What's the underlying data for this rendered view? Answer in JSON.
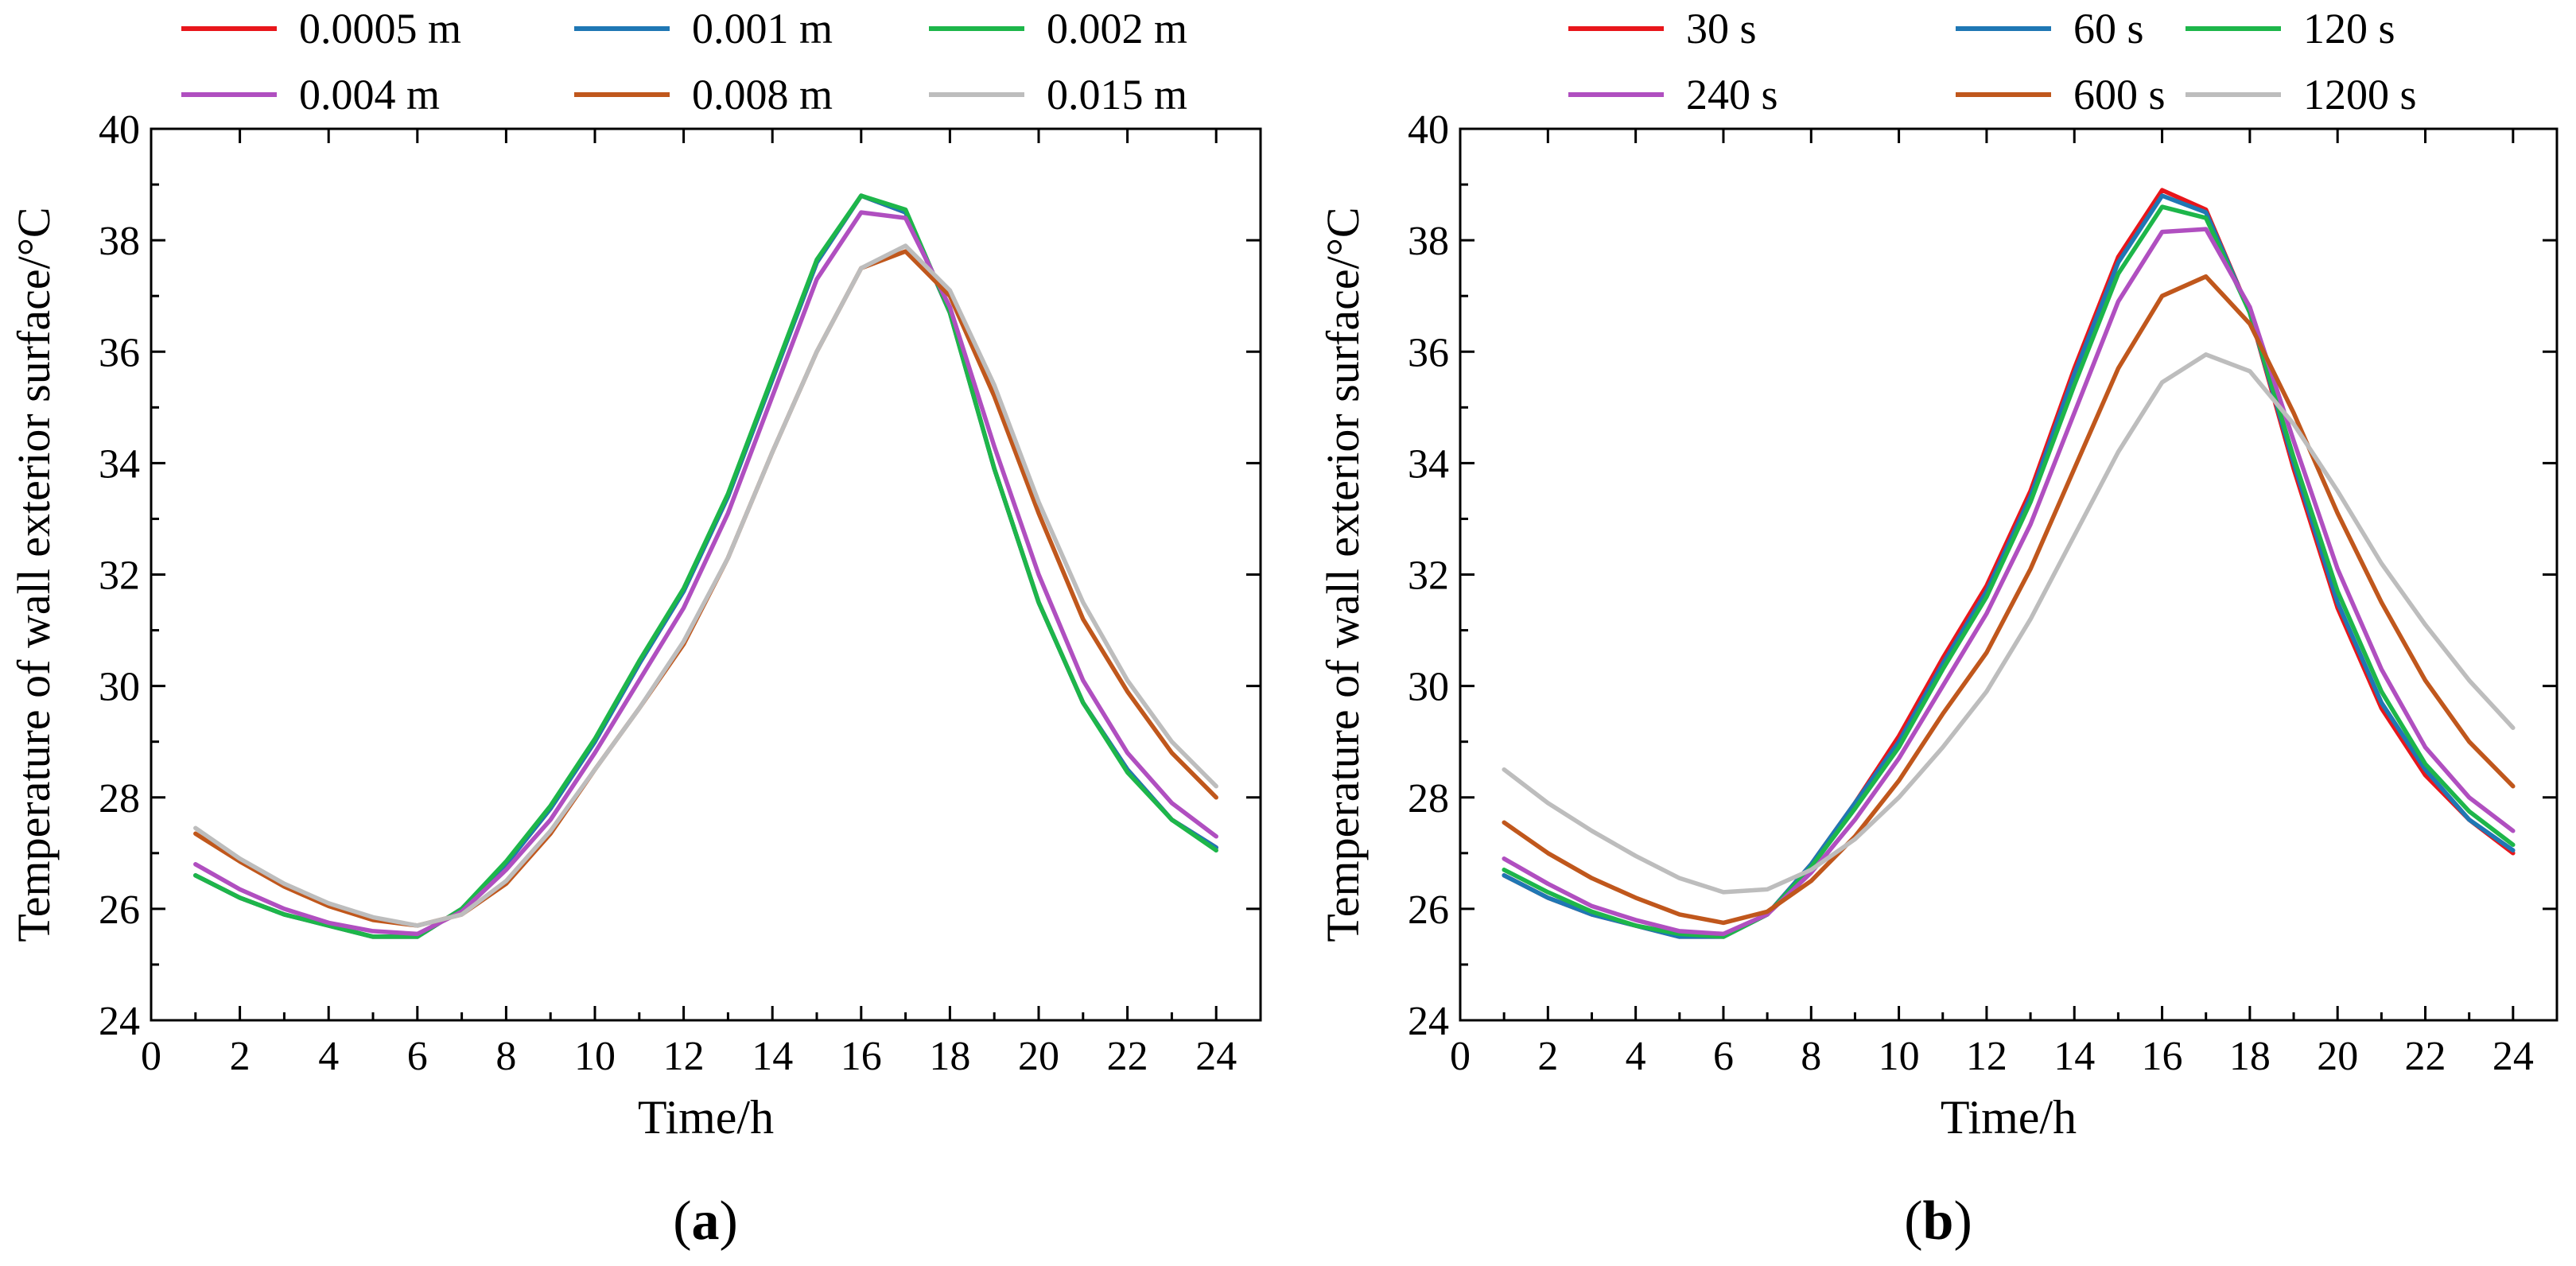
{
  "colors": {
    "red": "#e8161b",
    "blue": "#1f77b4",
    "green": "#1db64a",
    "purple": "#b04fc0",
    "orange": "#c0571c",
    "gray": "#bdbdbd",
    "axis": "#000000"
  },
  "chart_data": [
    {
      "type": "line",
      "panel_label": "(a)",
      "panel_letter": "a",
      "xlabel": "Time/h",
      "ylabel": "Temperature of wall exterior surface/°C",
      "xlim": [
        0,
        25
      ],
      "ylim": [
        24,
        40
      ],
      "xticks": [
        "0",
        "2",
        "4",
        "6",
        "8",
        "10",
        "12",
        "14",
        "16",
        "18",
        "20",
        "22",
        "24"
      ],
      "yticks": [
        "24",
        "26",
        "28",
        "30",
        "32",
        "34",
        "36",
        "38",
        "40"
      ],
      "legend_position": "top",
      "x": [
        1,
        2,
        3,
        4,
        5,
        6,
        7,
        8,
        9,
        10,
        11,
        12,
        13,
        14,
        15,
        16,
        17,
        18,
        19,
        20,
        21,
        22,
        23,
        24
      ],
      "series": [
        {
          "name": "0.0005 m",
          "color": "red",
          "values": [
            26.6,
            26.2,
            25.9,
            25.7,
            25.5,
            25.5,
            26.0,
            26.8,
            27.8,
            29.0,
            30.4,
            31.7,
            33.4,
            35.5,
            37.6,
            38.8,
            38.5,
            36.7,
            33.9,
            31.5,
            29.7,
            28.5,
            27.6,
            27.1
          ]
        },
        {
          "name": "0.001 m",
          "color": "blue",
          "values": [
            26.6,
            26.2,
            25.9,
            25.7,
            25.5,
            25.5,
            26.0,
            26.8,
            27.8,
            29.0,
            30.4,
            31.7,
            33.4,
            35.5,
            37.6,
            38.8,
            38.5,
            36.7,
            33.9,
            31.5,
            29.7,
            28.5,
            27.6,
            27.1
          ]
        },
        {
          "name": "0.002 m",
          "color": "green",
          "values": [
            26.6,
            26.2,
            25.9,
            25.7,
            25.5,
            25.5,
            26.0,
            26.85,
            27.85,
            29.05,
            30.45,
            31.75,
            33.45,
            35.55,
            37.65,
            38.8,
            38.55,
            36.7,
            33.9,
            31.5,
            29.7,
            28.45,
            27.6,
            27.05
          ]
        },
        {
          "name": "0.004 m",
          "color": "purple",
          "values": [
            26.8,
            26.35,
            26.0,
            25.75,
            25.6,
            25.55,
            25.95,
            26.7,
            27.6,
            28.8,
            30.1,
            31.4,
            33.1,
            35.2,
            37.3,
            38.5,
            38.4,
            36.8,
            34.3,
            32.0,
            30.1,
            28.8,
            27.9,
            27.3
          ]
        },
        {
          "name": "0.008 m",
          "color": "orange",
          "values": [
            27.35,
            26.85,
            26.4,
            26.05,
            25.8,
            25.7,
            25.9,
            26.45,
            27.35,
            28.5,
            29.6,
            30.75,
            32.3,
            34.2,
            36.0,
            37.5,
            37.8,
            37.0,
            35.2,
            33.1,
            31.2,
            29.9,
            28.8,
            28.0
          ]
        },
        {
          "name": "0.015 m",
          "color": "gray",
          "values": [
            27.45,
            26.9,
            26.45,
            26.1,
            25.85,
            25.7,
            25.9,
            26.5,
            27.4,
            28.5,
            29.6,
            30.8,
            32.3,
            34.2,
            36.0,
            37.5,
            37.9,
            37.1,
            35.4,
            33.3,
            31.5,
            30.1,
            29.0,
            28.2
          ]
        }
      ]
    },
    {
      "type": "line",
      "panel_label": "(b)",
      "panel_letter": "b",
      "xlabel": "Time/h",
      "ylabel": "Temperature of wall exterior surface/°C",
      "xlim": [
        0,
        25
      ],
      "ylim": [
        24,
        40
      ],
      "xticks": [
        "0",
        "2",
        "4",
        "6",
        "8",
        "10",
        "12",
        "14",
        "16",
        "18",
        "20",
        "22",
        "24"
      ],
      "yticks": [
        "24",
        "26",
        "28",
        "30",
        "32",
        "34",
        "36",
        "38",
        "40"
      ],
      "legend_position": "top",
      "x": [
        1,
        2,
        3,
        4,
        5,
        6,
        7,
        8,
        9,
        10,
        11,
        12,
        13,
        14,
        15,
        16,
        17,
        18,
        19,
        20,
        21,
        22,
        23,
        24
      ],
      "series": [
        {
          "name": "30 s",
          "color": "red",
          "values": [
            26.6,
            26.2,
            25.9,
            25.7,
            25.5,
            25.5,
            25.9,
            26.8,
            27.9,
            29.1,
            30.5,
            31.8,
            33.5,
            35.7,
            37.7,
            38.9,
            38.55,
            36.7,
            33.9,
            31.4,
            29.6,
            28.4,
            27.6,
            27.0
          ]
        },
        {
          "name": "60 s",
          "color": "blue",
          "values": [
            26.6,
            26.2,
            25.9,
            25.7,
            25.5,
            25.5,
            25.9,
            26.8,
            27.9,
            29.0,
            30.4,
            31.7,
            33.4,
            35.6,
            37.6,
            38.8,
            38.5,
            36.7,
            34.0,
            31.5,
            29.7,
            28.5,
            27.6,
            27.05
          ]
        },
        {
          "name": "120 s",
          "color": "green",
          "values": [
            26.7,
            26.3,
            25.95,
            25.7,
            25.55,
            25.5,
            25.9,
            26.75,
            27.8,
            28.9,
            30.3,
            31.6,
            33.3,
            35.4,
            37.4,
            38.6,
            38.4,
            36.7,
            34.1,
            31.7,
            29.9,
            28.6,
            27.75,
            27.15
          ]
        },
        {
          "name": "240 s",
          "color": "purple",
          "values": [
            26.9,
            26.45,
            26.05,
            25.8,
            25.6,
            25.55,
            25.9,
            26.65,
            27.6,
            28.7,
            30.0,
            31.3,
            32.9,
            34.9,
            36.9,
            38.15,
            38.2,
            36.8,
            34.4,
            32.1,
            30.3,
            28.9,
            28.0,
            27.4
          ]
        },
        {
          "name": "600 s",
          "color": "orange",
          "values": [
            27.55,
            27.0,
            26.55,
            26.2,
            25.9,
            25.75,
            25.95,
            26.5,
            27.3,
            28.3,
            29.5,
            30.6,
            32.1,
            33.9,
            35.7,
            37.0,
            37.35,
            36.5,
            34.9,
            33.1,
            31.5,
            30.1,
            29.0,
            28.2
          ]
        },
        {
          "name": "1200 s",
          "color": "gray",
          "values": [
            28.5,
            27.9,
            27.4,
            26.95,
            26.55,
            26.3,
            26.35,
            26.7,
            27.25,
            28.0,
            28.9,
            29.9,
            31.2,
            32.7,
            34.2,
            35.45,
            35.95,
            35.65,
            34.7,
            33.5,
            32.2,
            31.1,
            30.1,
            29.25
          ]
        }
      ]
    }
  ]
}
